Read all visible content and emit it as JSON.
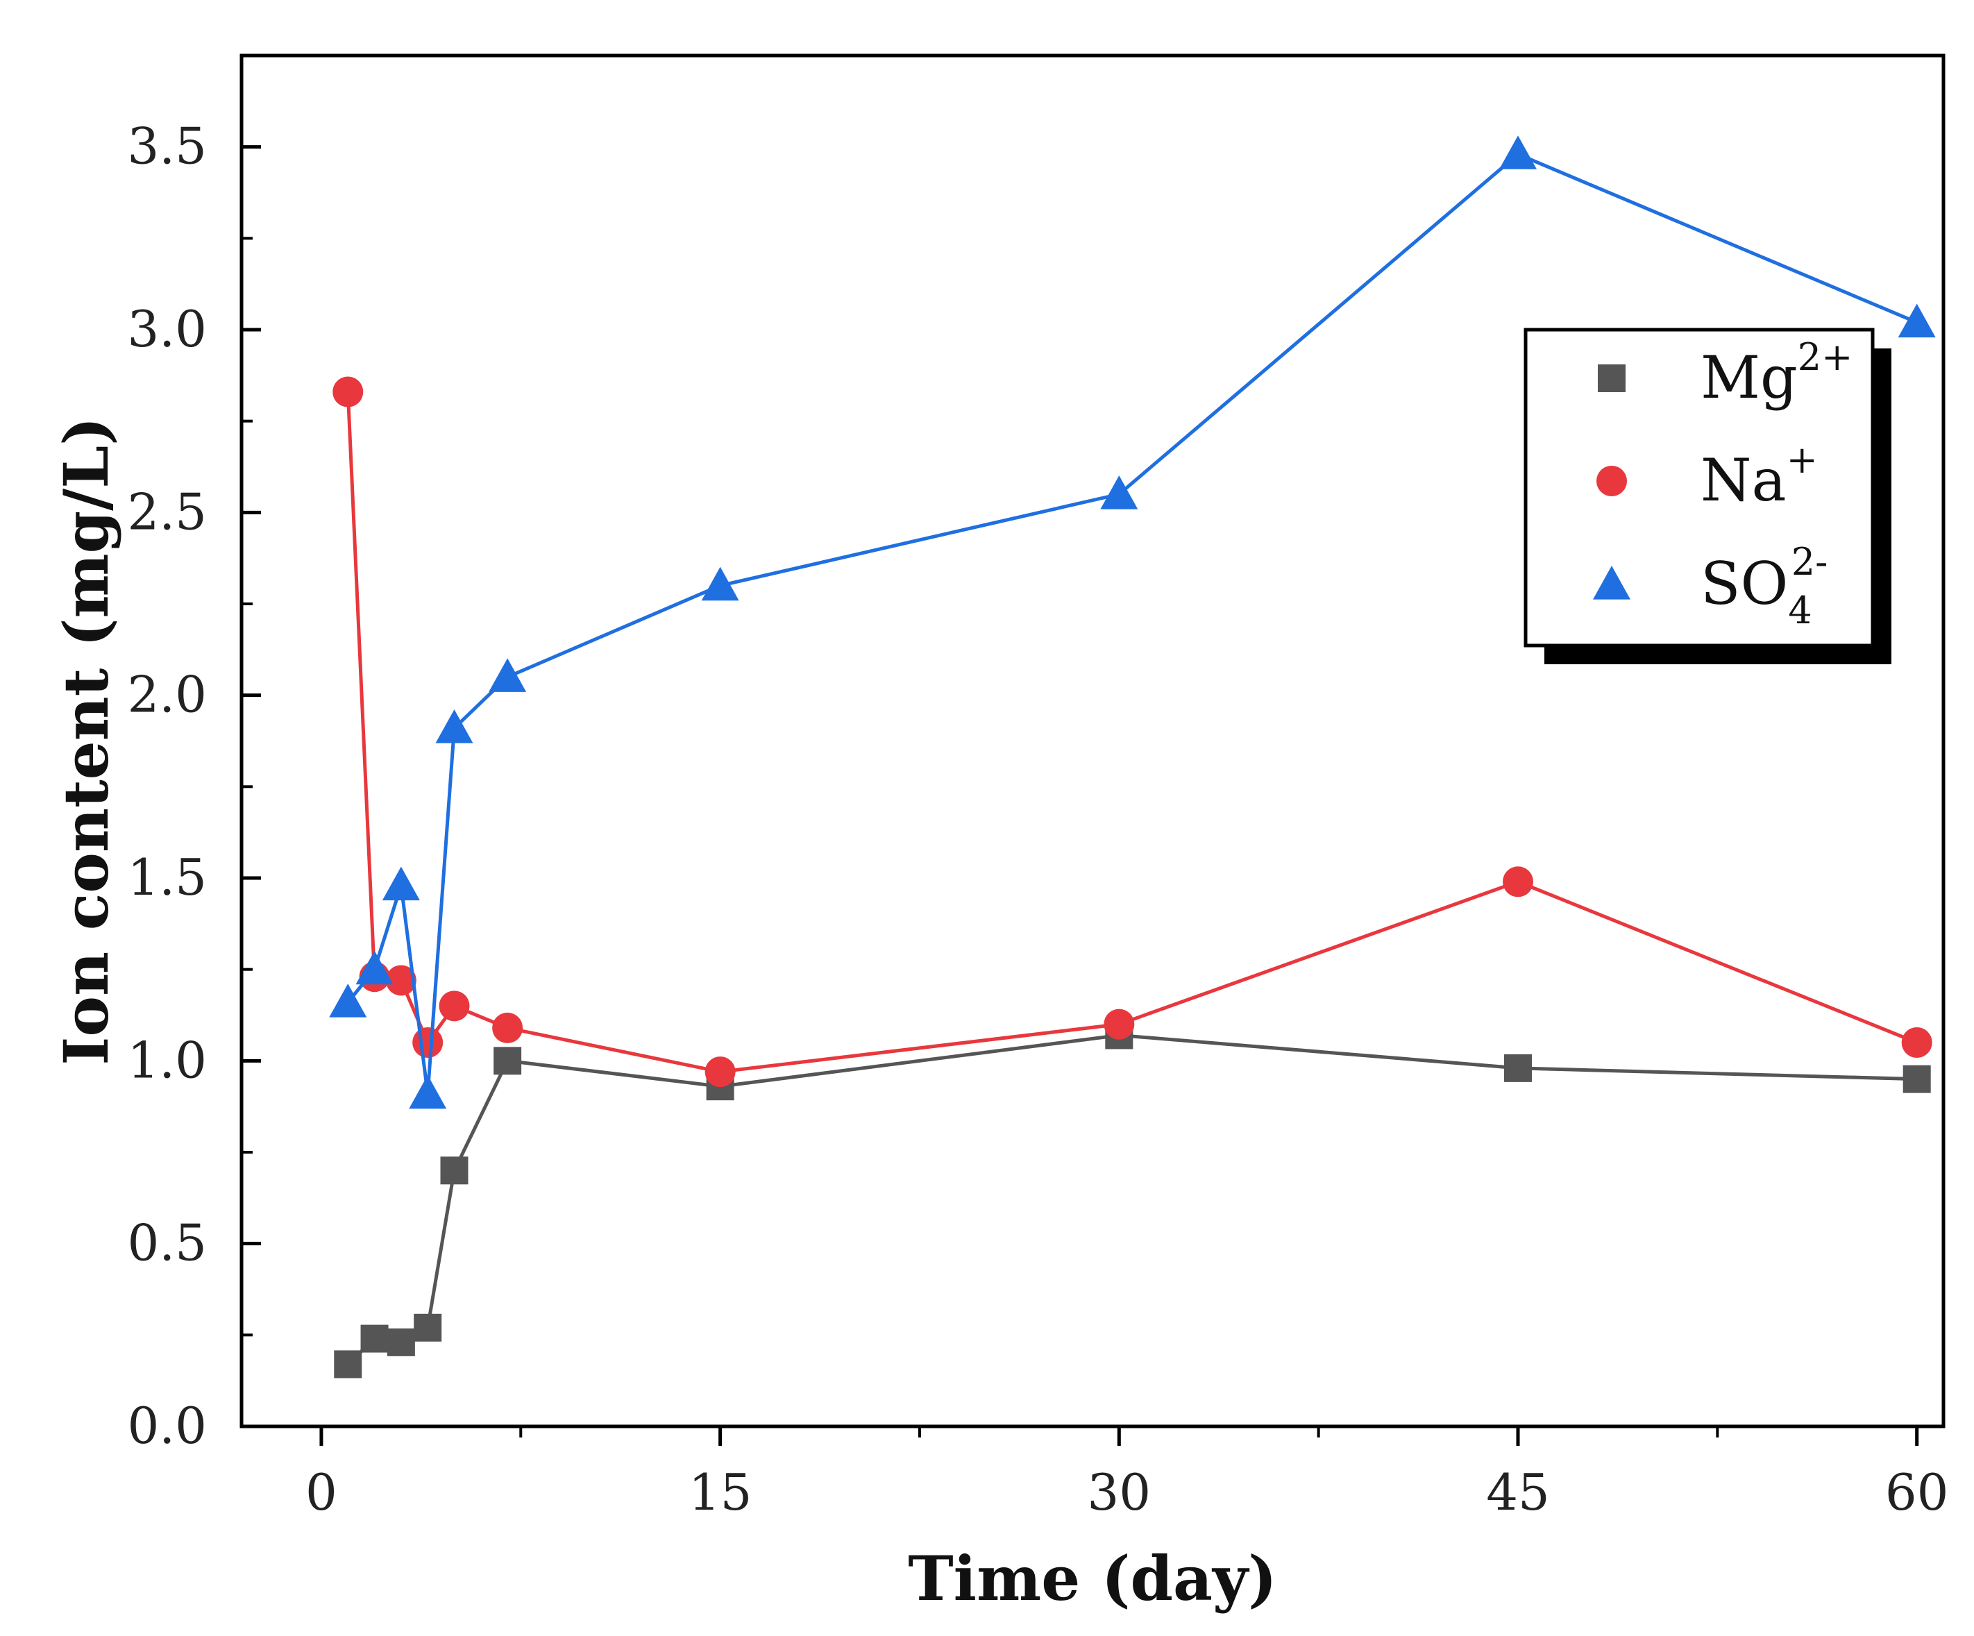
{
  "chart_data": {
    "type": "line",
    "title": "",
    "xlabel": "Time (day)",
    "ylabel": "Ion content (mg/L)",
    "xlim": [
      -3,
      61
    ],
    "ylim": [
      0,
      3.75
    ],
    "xticks": [
      0,
      15,
      30,
      45,
      60
    ],
    "xtick_labels": [
      "0",
      "15",
      "30",
      "45",
      "60"
    ],
    "yticks": [
      0,
      0.5,
      1.0,
      1.5,
      2.0,
      2.5,
      3.0,
      3.5
    ],
    "ytick_labels": [
      "0.0",
      "0.5",
      "1.0",
      "1.5",
      "2.0",
      "2.5",
      "3.0",
      "3.5"
    ],
    "legend_position": "upper-right",
    "series": [
      {
        "name": "Mg",
        "legend_base": "Mg",
        "legend_sup": "2+",
        "legend_sub": "",
        "color": "#555555",
        "marker": "square",
        "x": [
          1,
          2,
          3,
          4,
          5,
          7,
          15,
          30,
          45,
          60
        ],
        "y": [
          0.17,
          0.24,
          0.23,
          0.27,
          0.7,
          1.0,
          0.93,
          1.07,
          0.98,
          0.95
        ]
      },
      {
        "name": "Na",
        "legend_base": "Na",
        "legend_sup": "+",
        "legend_sub": "",
        "color": "#e8383d",
        "marker": "circle",
        "x": [
          1,
          2,
          3,
          4,
          5,
          7,
          15,
          30,
          45,
          60
        ],
        "y": [
          2.83,
          1.23,
          1.22,
          1.05,
          1.15,
          1.09,
          0.97,
          1.1,
          1.49,
          1.05
        ]
      },
      {
        "name": "SO4",
        "legend_base": "SO",
        "legend_sup": "2-",
        "legend_sub": "4",
        "color": "#1f6fe0",
        "marker": "triangle",
        "x": [
          1,
          2,
          3,
          4,
          5,
          7,
          15,
          30,
          45,
          60
        ],
        "y": [
          1.16,
          1.25,
          1.48,
          0.91,
          1.91,
          2.05,
          2.3,
          2.55,
          3.48,
          3.02
        ]
      }
    ]
  }
}
